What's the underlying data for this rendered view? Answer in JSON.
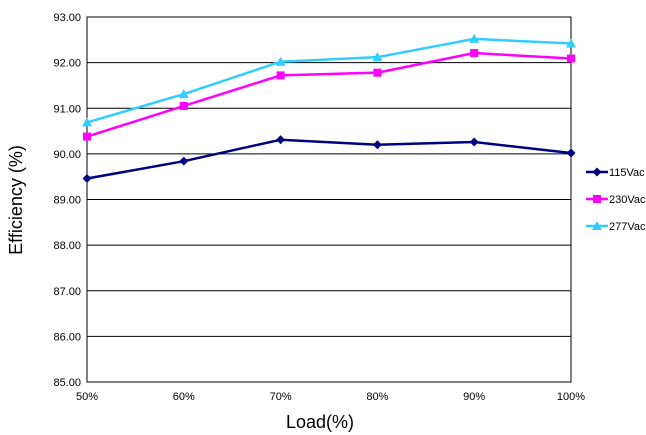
{
  "chart_data": {
    "type": "line",
    "categories": [
      "50%",
      "60%",
      "70%",
      "80%",
      "90%",
      "100%"
    ],
    "series": [
      {
        "name": "115Vac",
        "values": [
          89.46,
          89.84,
          90.31,
          90.2,
          90.26,
          90.02
        ],
        "color": "#000080",
        "marker": "diamond"
      },
      {
        "name": "230Vac",
        "values": [
          90.38,
          91.05,
          91.72,
          91.78,
          92.21,
          92.09
        ],
        "color": "#ff00ff",
        "marker": "square"
      },
      {
        "name": "277Vac",
        "values": [
          90.69,
          91.31,
          92.02,
          92.12,
          92.52,
          92.42
        ],
        "color": "#33ccff",
        "marker": "triangle"
      }
    ],
    "xlabel": "Load(%)",
    "ylabel": "Efficiency (%)",
    "ylim": [
      85,
      93
    ],
    "ytick_step": 1,
    "ytick_labels": [
      "85.00",
      "86.00",
      "87.00",
      "88.00",
      "89.00",
      "90.00",
      "91.00",
      "92.00",
      "93.00"
    ],
    "grid": "horizontal",
    "legend_position": "right"
  }
}
